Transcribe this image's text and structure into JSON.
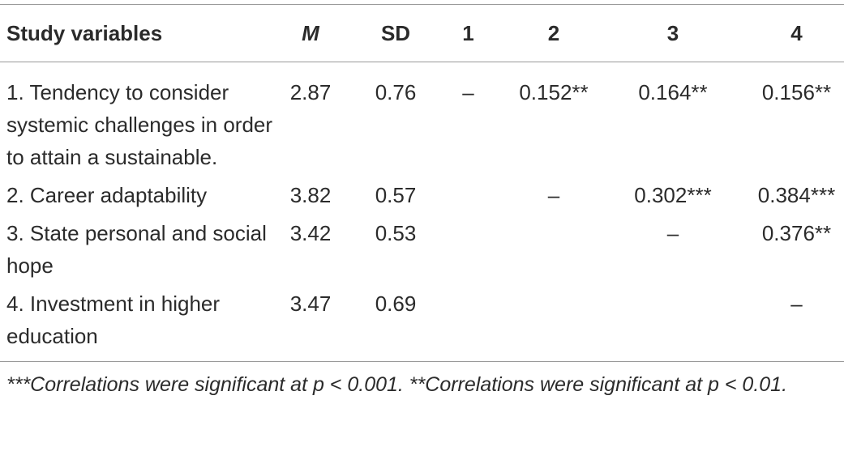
{
  "table": {
    "header": [
      "Study variables",
      "M",
      "SD",
      "1",
      "2",
      "3",
      "4"
    ],
    "rows": [
      [
        "1. Tendency to consider systemic challenges in order to attain a sustainable.",
        "2.87",
        "0.76",
        "–",
        "0.152**",
        "0.164**",
        "0.156**"
      ],
      [
        "2. Career adaptability",
        "3.82",
        "0.57",
        null,
        "–",
        "0.302***",
        "0.384***"
      ],
      [
        "3. State personal and social hope",
        "3.42",
        "0.53",
        null,
        null,
        "–",
        "0.376**"
      ],
      [
        "4. Investment in higher education",
        "3.47",
        "0.69",
        null,
        null,
        null,
        "–"
      ]
    ],
    "footnote": "***Correlations were significant at p < 0.001. **Correlations were significant at p < 0.01."
  }
}
